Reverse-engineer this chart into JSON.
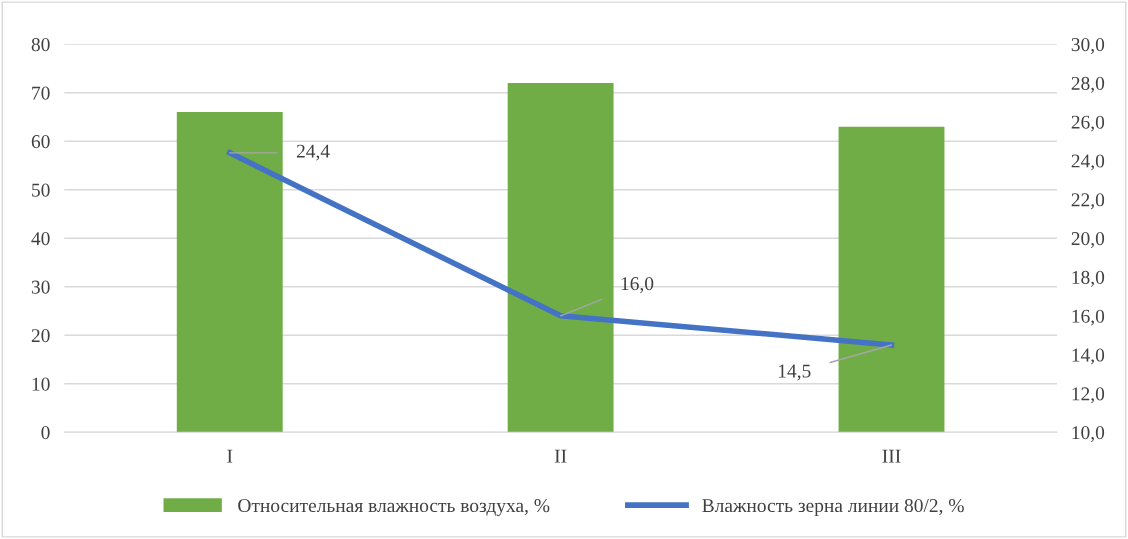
{
  "chart_data": {
    "type": "bar",
    "categories": [
      "I",
      "II",
      "III"
    ],
    "series": [
      {
        "name": "Относительная влажность воздуха, %",
        "color": "#70ad47",
        "values": [
          66,
          72,
          63
        ]
      },
      {
        "name": "Влажность зерна линии 80/2, %",
        "type": "line",
        "axis": "y2",
        "color": "#4472c4",
        "values": [
          24.4,
          16.0,
          14.5
        ],
        "value_labels": [
          "24,4",
          "16,0",
          "14,5"
        ]
      }
    ],
    "ylim": [
      0,
      80
    ],
    "yticks": [
      0,
      10,
      20,
      30,
      40,
      50,
      60,
      70,
      80
    ],
    "y2lim": [
      10,
      30
    ],
    "y2ticks": [
      {
        "value": 10,
        "label": "10,0"
      },
      {
        "value": 12,
        "label": "12,0"
      },
      {
        "value": 14,
        "label": "14,0"
      },
      {
        "value": 16,
        "label": "16,0"
      },
      {
        "value": 18,
        "label": "18,0"
      },
      {
        "value": 20,
        "label": "20,0"
      },
      {
        "value": 22,
        "label": "22,0"
      },
      {
        "value": 24,
        "label": "24,0"
      },
      {
        "value": 26,
        "label": "26,0"
      },
      {
        "value": 28,
        "label": "28,0"
      },
      {
        "value": 30,
        "label": "30,0"
      }
    ],
    "grid": "y",
    "legend": "bottom",
    "marker": "none"
  }
}
